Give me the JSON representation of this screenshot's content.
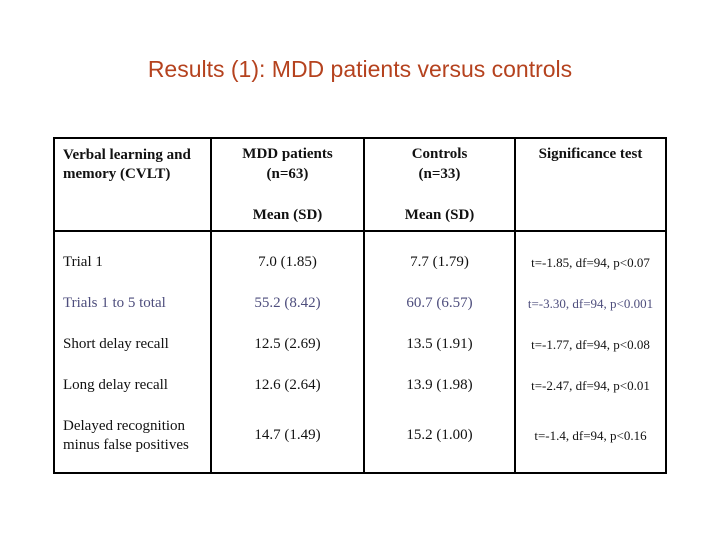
{
  "title": "Results (1): MDD patients versus controls",
  "colors": {
    "title_text": "#b5421e",
    "table_border": "#000000",
    "highlight_row_text": "#4e4e7d",
    "body_text": "#111111",
    "background": "#ffffff"
  },
  "table": {
    "row_header": {
      "title": "Verbal learning and memory (CVLT)"
    },
    "columns": [
      {
        "title": "MDD patients",
        "n": "(n=63)",
        "stat": "Mean (SD)"
      },
      {
        "title": "Controls",
        "n": "(n=33)",
        "stat": "Mean (SD)"
      },
      {
        "title": "Significance test"
      }
    ],
    "rows": [
      {
        "label": "Trial 1",
        "mdd": "7.0 (1.85)",
        "controls": "7.7 (1.79)",
        "significance": "t=-1.85, df=94, p<0.07",
        "highlighted": false
      },
      {
        "label": "Trials 1 to 5 total",
        "mdd": "55.2 (8.42)",
        "controls": "60.7 (6.57)",
        "significance": "t=-3.30, df=94, p<0.001",
        "highlighted": true
      },
      {
        "label": "Short delay recall",
        "mdd": "12.5 (2.69)",
        "controls": "13.5 (1.91)",
        "significance": "t=-1.77, df=94, p<0.08",
        "highlighted": false
      },
      {
        "label": "Long delay recall",
        "mdd": "12.6 (2.64)",
        "controls": "13.9 (1.98)",
        "significance": "t=-2.47, df=94, p<0.01",
        "highlighted": false
      },
      {
        "label": "Delayed recognition minus false positives",
        "mdd": "14.7 (1.49)",
        "controls": "15.2 (1.00)",
        "significance": "t=-1.4, df=94, p<0.16",
        "highlighted": false
      }
    ]
  }
}
